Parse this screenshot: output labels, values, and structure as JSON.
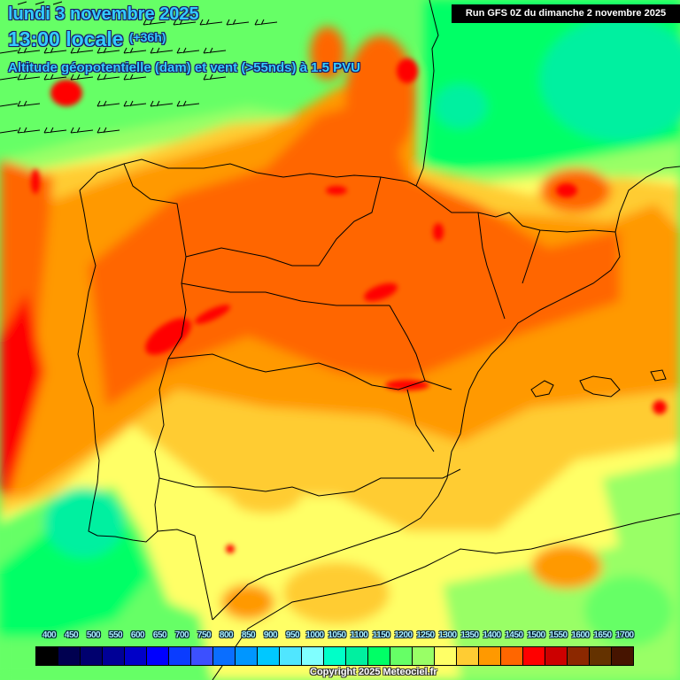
{
  "header": {
    "date": "lundi 3 novembre 2025",
    "time": "13:00 locale",
    "lead_time": "(+36h)",
    "parameter": "Altitude géopotentielle (dam) et vent (>55nds) à 1.5 PVU",
    "run_info": "Run GFS 0Z du dimanche 2 novembre 2025"
  },
  "map": {
    "region": "Iberian Peninsula",
    "field": "geopotential height at 1.5 PVU",
    "units": "dam",
    "wind_barbs": {
      "threshold": ">55nds",
      "region": "north-west corner over Bay of Biscay/Atlantic",
      "direction": "westerly"
    }
  },
  "legend": {
    "labels": [
      "400",
      "450",
      "500",
      "550",
      "600",
      "650",
      "700",
      "750",
      "800",
      "850",
      "900",
      "950",
      "1000",
      "1050",
      "1100",
      "1150",
      "1200",
      "1250",
      "1300",
      "1350",
      "1400",
      "1450",
      "1500",
      "1550",
      "1600",
      "1650",
      "1700"
    ],
    "colors": [
      "#000000",
      "#000050",
      "#00006e",
      "#000096",
      "#0000c8",
      "#0000ff",
      "#0a3cff",
      "#3c50ff",
      "#0a6eff",
      "#0096ff",
      "#00c8ff",
      "#50e6ff",
      "#80ffff",
      "#00ffc8",
      "#00f0a0",
      "#00ff66",
      "#66ff66",
      "#99ff66",
      "#ffff66",
      "#ffcc33",
      "#ff9900",
      "#ff6600",
      "#ff0000",
      "#cc0000",
      "#8c2800",
      "#643200",
      "#461400"
    ]
  },
  "footer": {
    "copyright": "Copyright 2025 Meteociel.fr"
  },
  "colors": {
    "title": "#33ccff",
    "run_box_bg": "#000000",
    "run_box_text": "#ffffff"
  }
}
